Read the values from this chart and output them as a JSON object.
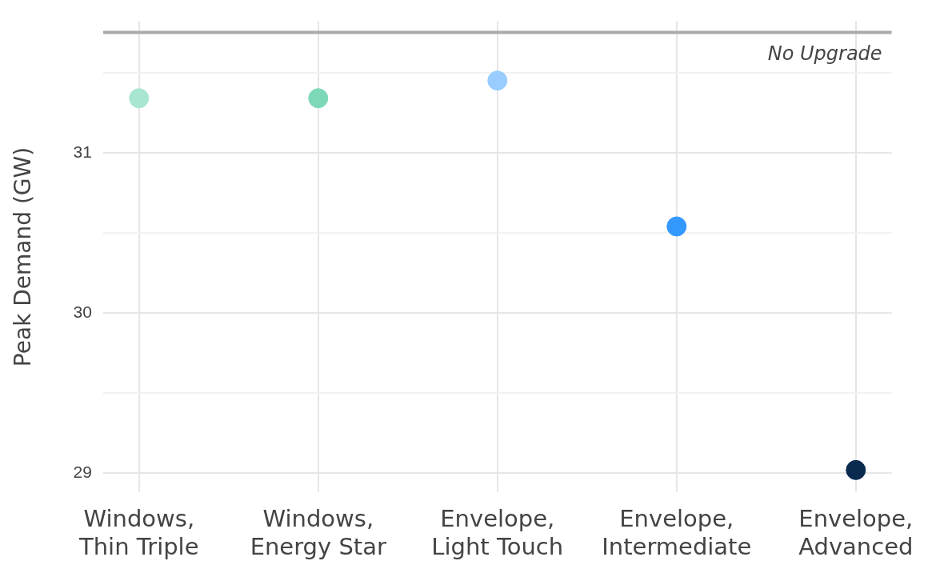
{
  "chart_data": {
    "type": "scatter",
    "ylabel": "Peak Demand (GW)",
    "categories": [
      "Windows, Thin Triple",
      "Windows, Energy Star",
      "Envelope, Light Touch",
      "Envelope, Intermediate",
      "Envelope, Advanced"
    ],
    "values": [
      31.34,
      31.34,
      31.45,
      30.54,
      29.02
    ],
    "colors": [
      "#a8e6d2",
      "#7dd8b8",
      "#99ccff",
      "#3399ff",
      "#0a2a4f"
    ],
    "ylim": [
      28.88,
      31.82
    ],
    "yticks": [
      {
        "value": 29,
        "label": "29"
      },
      {
        "value": 29.5,
        "label": null
      },
      {
        "value": 30,
        "label": "30"
      },
      {
        "value": 30.5,
        "label": null
      },
      {
        "value": 31,
        "label": "31"
      },
      {
        "value": 31.5,
        "label": null
      }
    ],
    "ref_lines": [
      {
        "axis": "y",
        "value": 31.75,
        "label": "No Upgrade",
        "color": "#aaaaaa"
      }
    ],
    "grid": true,
    "legend": false,
    "marker": "circle"
  }
}
